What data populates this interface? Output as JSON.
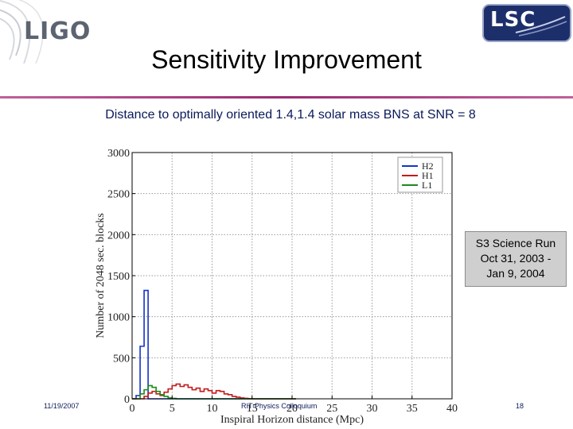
{
  "header": {
    "left_logo": "LIGO",
    "right_logo": "LSC",
    "title": "Sensitivity Improvement",
    "subtitle": "Distance to optimally oriented 1.4,1.4 solar mass BNS at SNR = 8"
  },
  "callout": {
    "lines": [
      "S3 Science Run",
      "Oct 31, 2003 -",
      "Jan 9, 2004"
    ]
  },
  "footer": {
    "date": "11/19/2007",
    "center": "RIT Physics Colloquium",
    "page": "18"
  },
  "colors": {
    "title_rule": "#9a2c72",
    "text_dark": "#0a1a5a",
    "H2": "#1533c8",
    "H1": "#c41a1a",
    "L1": "#1a8a1a"
  },
  "chart_data": {
    "type": "line",
    "xlabel": "Inspiral Horizon distance (Mpc)",
    "ylabel": "Number of 2048 sec. blocks",
    "xlim": [
      0,
      40
    ],
    "ylim": [
      0,
      3000
    ],
    "xticks": [
      0,
      5,
      10,
      15,
      20,
      25,
      30,
      35,
      40
    ],
    "yticks": [
      0,
      500,
      1000,
      1500,
      2000,
      2500,
      3000
    ],
    "grid": true,
    "legend_position": "top-right",
    "x": [
      0.0,
      0.5,
      1.0,
      1.5,
      2.0,
      2.5,
      3.0,
      3.5,
      4.0,
      4.5,
      5.0,
      5.5,
      6.0,
      6.5,
      7.0,
      7.5,
      8.0,
      8.5,
      9.0,
      9.5,
      10.0,
      10.5,
      11.0,
      11.5,
      12.0,
      12.5,
      13.0,
      13.5,
      14.0,
      14.5,
      15.0,
      15.5,
      16.0,
      16.5,
      17.0,
      17.5,
      18.0,
      18.5,
      19.0,
      19.5,
      20.0
    ],
    "series": [
      {
        "name": "H2",
        "values": [
          0,
          40,
          640,
          1320,
          0,
          0,
          0,
          0,
          0,
          0,
          0,
          0,
          0,
          0,
          0,
          0,
          0,
          0,
          0,
          0,
          0,
          0,
          0,
          0,
          0,
          0,
          0,
          0,
          0,
          0,
          0,
          0,
          0,
          0,
          0,
          0,
          0,
          0,
          0,
          0,
          0
        ]
      },
      {
        "name": "H1",
        "values": [
          0,
          0,
          0,
          30,
          70,
          90,
          60,
          40,
          80,
          120,
          160,
          180,
          150,
          170,
          140,
          110,
          130,
          90,
          120,
          100,
          70,
          100,
          90,
          60,
          50,
          30,
          20,
          10,
          5,
          2,
          0,
          0,
          0,
          0,
          0,
          0,
          0,
          0,
          0,
          0,
          0
        ]
      },
      {
        "name": "L1",
        "values": [
          0,
          0,
          60,
          110,
          160,
          140,
          90,
          50,
          30,
          10,
          5,
          0,
          0,
          0,
          0,
          0,
          0,
          0,
          0,
          0,
          0,
          0,
          0,
          0,
          0,
          0,
          0,
          0,
          0,
          0,
          0,
          0,
          0,
          0,
          0,
          0,
          0,
          0,
          0,
          0,
          0
        ]
      }
    ]
  }
}
